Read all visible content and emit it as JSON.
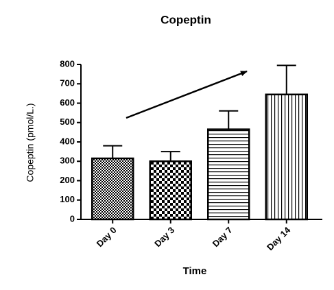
{
  "chart_data": {
    "type": "bar",
    "title": "Copeptin",
    "x_label": "Time",
    "y_label": "Copeptin (pmol/L.)",
    "categories": [
      "Day 0",
      "Day 3",
      "Day 7",
      "Day 14"
    ],
    "values": [
      315,
      300,
      465,
      645
    ],
    "errors": [
      65,
      50,
      95,
      150
    ],
    "patterns": [
      "fine-checker",
      "checker",
      "horizontal-lines",
      "vertical-lines"
    ],
    "color": "#000000",
    "ylim": [
      0,
      800
    ],
    "yticks": [
      0,
      100,
      200,
      300,
      400,
      500,
      600,
      700,
      800
    ],
    "grid": false
  }
}
